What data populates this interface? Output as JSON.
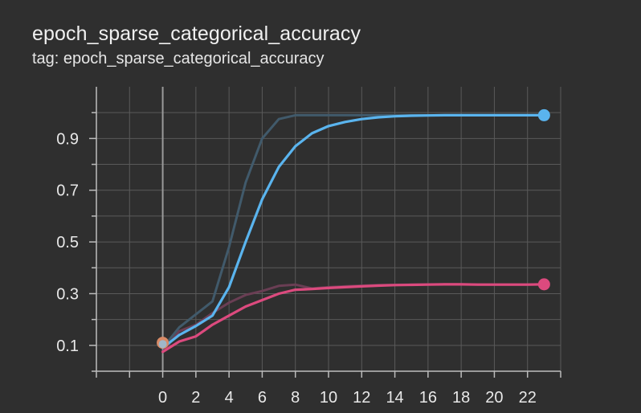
{
  "card": {
    "title": "epoch_sparse_categorical_accuracy",
    "tag": "tag: epoch_sparse_categorical_accuracy"
  },
  "colors": {
    "background": "#2f2f2f",
    "grid": "#5a5a5a",
    "series_blue": "#5ab4ee",
    "series_pink": "#dc4a7e",
    "raw_blue": "#415a6b",
    "raw_pink": "#6a3e54"
  },
  "chart_data": {
    "type": "line",
    "title": "epoch_sparse_categorical_accuracy",
    "xlabel": "",
    "ylabel": "",
    "xlim": [
      -4,
      24
    ],
    "ylim": [
      0.0,
      1.1
    ],
    "x_ticks": [
      0,
      2,
      4,
      6,
      8,
      10,
      12,
      14,
      16,
      18,
      20,
      22
    ],
    "y_ticks": [
      0.1,
      0.3,
      0.5,
      0.7,
      0.9
    ],
    "grid": true,
    "series": [
      {
        "color": "#5ab4ee",
        "style": "smoothed",
        "x": [
          0,
          1,
          2,
          3,
          4,
          5,
          6,
          7,
          8,
          9,
          10,
          11,
          12,
          13,
          14,
          15,
          16,
          17,
          18,
          19,
          20,
          21,
          22,
          23
        ],
        "y": [
          0.09,
          0.14,
          0.175,
          0.215,
          0.325,
          0.5,
          0.665,
          0.79,
          0.87,
          0.92,
          0.948,
          0.964,
          0.975,
          0.982,
          0.986,
          0.988,
          0.989,
          0.99,
          0.99,
          0.99,
          0.99,
          0.99,
          0.99,
          0.99
        ]
      },
      {
        "color": "#dc4a7e",
        "style": "smoothed",
        "x": [
          0,
          1,
          2,
          3,
          4,
          5,
          6,
          7,
          8,
          9,
          10,
          11,
          12,
          13,
          14,
          15,
          16,
          17,
          18,
          19,
          20,
          21,
          22,
          23
        ],
        "y": [
          0.075,
          0.115,
          0.135,
          0.18,
          0.215,
          0.25,
          0.275,
          0.3,
          0.315,
          0.318,
          0.322,
          0.325,
          0.328,
          0.331,
          0.333,
          0.334,
          0.335,
          0.336,
          0.336,
          0.335,
          0.335,
          0.335,
          0.335,
          0.336
        ]
      },
      {
        "color": "#415a6b",
        "style": "raw",
        "x": [
          0,
          1,
          2,
          3,
          4,
          5,
          6,
          7,
          8,
          9,
          10,
          11,
          12,
          13,
          14,
          15,
          16,
          17,
          18,
          19,
          20,
          21,
          22,
          23
        ],
        "y": [
          0.09,
          0.17,
          0.22,
          0.27,
          0.48,
          0.73,
          0.9,
          0.975,
          0.99,
          0.99,
          0.99,
          0.99,
          0.99,
          0.99,
          0.99,
          0.99,
          0.99,
          0.99,
          0.99,
          0.99,
          0.99,
          0.99,
          0.99,
          0.99
        ]
      },
      {
        "color": "#6a3e54",
        "style": "raw",
        "x": [
          0,
          1,
          2,
          3,
          4,
          5,
          6,
          7,
          8,
          9,
          10,
          11,
          12,
          13,
          14,
          15,
          16,
          17,
          18,
          19,
          20,
          21,
          22,
          23
        ],
        "y": [
          0.075,
          0.155,
          0.18,
          0.225,
          0.265,
          0.295,
          0.31,
          0.33,
          0.335,
          0.32,
          0.325,
          0.328,
          0.331,
          0.333,
          0.334,
          0.335,
          0.336,
          0.336,
          0.336,
          0.335,
          0.335,
          0.335,
          0.335,
          0.336
        ]
      }
    ]
  }
}
